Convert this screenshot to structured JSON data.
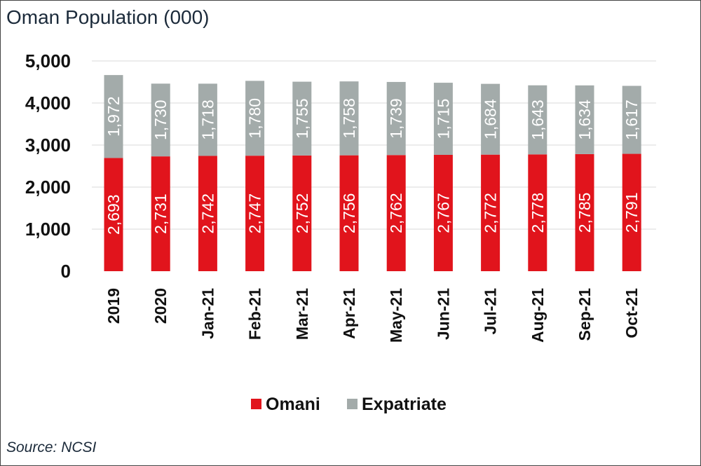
{
  "title": "Oman Population (000)",
  "source": "Source: NCSI",
  "colors": {
    "omani": "#e1141c",
    "expatriate": "#a3abaa",
    "grid": "#d9d9d9"
  },
  "chart_data": {
    "type": "bar",
    "stacked": true,
    "title": "Oman Population (000)",
    "categories": [
      "2019",
      "2020",
      "Jan-21",
      "Feb-21",
      "Mar-21",
      "Apr-21",
      "May-21",
      "Jun-21",
      "Jul-21",
      "Aug-21",
      "Sep-21",
      "Oct-21"
    ],
    "series": [
      {
        "name": "Omani",
        "values": [
          2693,
          2731,
          2742,
          2747,
          2752,
          2756,
          2762,
          2767,
          2772,
          2778,
          2785,
          2791
        ],
        "labels": [
          "2,693",
          "2,731",
          "2,742",
          "2,747",
          "2,752",
          "2,756",
          "2,762",
          "2,767",
          "2,772",
          "2,778",
          "2,785",
          "2,791"
        ]
      },
      {
        "name": "Expatriate",
        "values": [
          1972,
          1730,
          1718,
          1780,
          1755,
          1758,
          1739,
          1715,
          1684,
          1643,
          1634,
          1617
        ],
        "labels": [
          "1,972",
          "1,730",
          "1,718",
          "1,780",
          "1,755",
          "1,758",
          "1,739",
          "1,715",
          "1,684",
          "1,643",
          "1,634",
          "1,617"
        ]
      }
    ],
    "ylim": [
      0,
      5000
    ],
    "yticks": [
      0,
      1000,
      2000,
      3000,
      4000,
      5000
    ],
    "yticklabels": [
      "0",
      "1,000",
      "2,000",
      "3,000",
      "4,000",
      "5,000"
    ],
    "grid": true,
    "legend": "bottom"
  }
}
